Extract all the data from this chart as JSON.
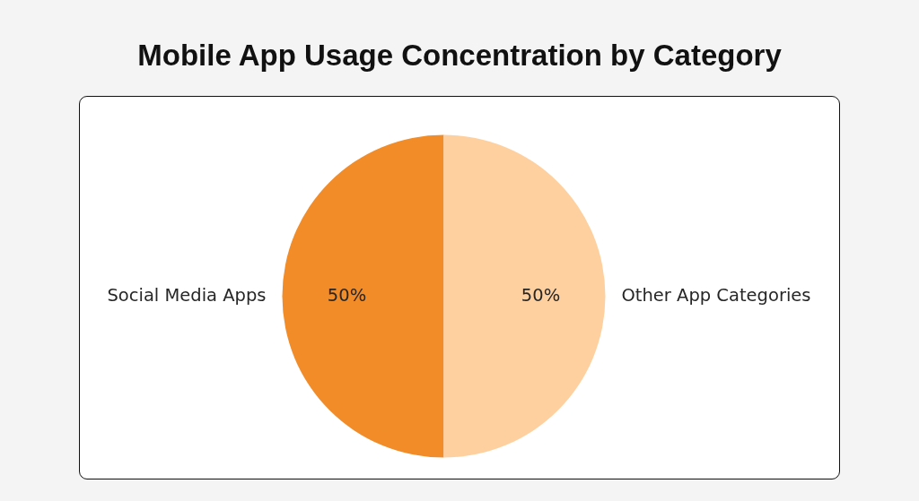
{
  "chart_data": {
    "type": "pie",
    "title": "Mobile App Usage Concentration by Category",
    "categories": [
      "Social Media Apps",
      "Other App Categories"
    ],
    "values": [
      50,
      50
    ],
    "colors": [
      "#f28c28",
      "#ffd09f"
    ],
    "value_labels": [
      "50%",
      "50%"
    ]
  }
}
